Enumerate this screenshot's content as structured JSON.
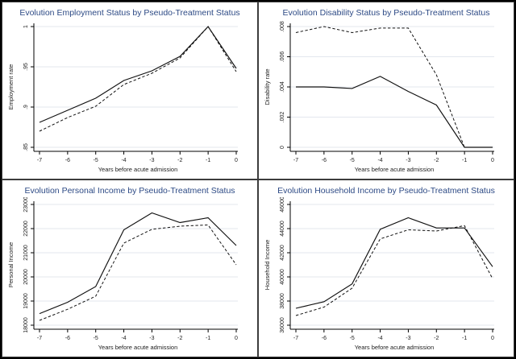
{
  "page": {
    "kind": "stata-graph-2x2-panel",
    "background": "#ffffff",
    "outer_border_color": "#000000",
    "panel_border_color": "#3c3c3c"
  },
  "colors": {
    "title_text": "#2d4a85",
    "line": "#111111",
    "grid": "#e3e7ee",
    "axis": "#000000",
    "tick_text": "#1c1c1c"
  },
  "chart_data": [
    {
      "type": "line",
      "title": "Evolution Employment Status by Pseudo-Treatment Status",
      "xlabel": "Years before acute admission",
      "ylabel": "Employment rate",
      "x": [
        -7,
        -6,
        -5,
        -4,
        -3,
        -2,
        -1,
        0
      ],
      "xtick_labels": [
        "-7",
        "-6",
        "-5",
        "-4",
        "-3",
        "-2",
        "-1",
        "0"
      ],
      "ylim": [
        0.85,
        1.0
      ],
      "yticks": [
        0.85,
        0.9,
        0.95,
        1.0
      ],
      "ytick_labels": [
        ".85",
        ".9",
        ".95",
        "1"
      ],
      "grid": true,
      "legend": "none",
      "series": [
        {
          "name": "solid",
          "line_style": "solid",
          "values": [
            0.881,
            0.896,
            0.911,
            0.933,
            0.945,
            0.963,
            1.0,
            0.948
          ]
        },
        {
          "name": "dashed",
          "line_style": "dashed",
          "values": [
            0.87,
            0.887,
            0.901,
            0.928,
            0.942,
            0.961,
            1.0,
            0.944
          ]
        }
      ]
    },
    {
      "type": "line",
      "title": "Evolution Disability Status by Pseudo-Treatment Status",
      "xlabel": "Years before acute admission",
      "ylabel": "Disability rate",
      "x": [
        -7,
        -6,
        -5,
        -4,
        -3,
        -2,
        -1,
        0
      ],
      "xtick_labels": [
        "-7",
        "-6",
        "-5",
        "-4",
        "-3",
        "-2",
        "-1",
        "0"
      ],
      "ylim": [
        0,
        0.008
      ],
      "yticks": [
        0,
        0.002,
        0.004,
        0.006,
        0.008
      ],
      "ytick_labels": [
        "0",
        ".002",
        ".004",
        ".006",
        ".008"
      ],
      "grid": true,
      "legend": "none",
      "series": [
        {
          "name": "solid",
          "line_style": "solid",
          "values": [
            0.004,
            0.004,
            0.0039,
            0.0047,
            0.0037,
            0.0028,
            0.0,
            0.0
          ]
        },
        {
          "name": "dashed",
          "line_style": "dashed",
          "values": [
            0.0076,
            0.008,
            0.0076,
            0.0079,
            0.0079,
            0.0048,
            0.0,
            0.0
          ]
        }
      ]
    },
    {
      "type": "line",
      "title": "Evolution Personal Income by Pseudo-Treatment Status",
      "xlabel": "Years before acute admission",
      "ylabel": "Personal Income",
      "x": [
        -7,
        -6,
        -5,
        -4,
        -3,
        -2,
        -1,
        0
      ],
      "xtick_labels": [
        "-7",
        "-6",
        "-5",
        "-4",
        "-3",
        "-2",
        "-1",
        "0"
      ],
      "ylim": [
        18000,
        23000
      ],
      "yticks": [
        18000,
        19000,
        20000,
        21000,
        22000,
        23000
      ],
      "ytick_labels": [
        "18000",
        "19000",
        "20000",
        "21000",
        "22000",
        "23000"
      ],
      "grid": true,
      "legend": "none",
      "series": [
        {
          "name": "solid",
          "line_style": "solid",
          "values": [
            18480,
            18950,
            19600,
            21950,
            22650,
            22250,
            22450,
            21300
          ]
        },
        {
          "name": "dashed",
          "line_style": "dashed",
          "values": [
            18200,
            18660,
            19200,
            21400,
            21970,
            22100,
            22150,
            20500
          ]
        }
      ]
    },
    {
      "type": "line",
      "title": "Evolution Household Income by Pseudo-Treatment Status",
      "xlabel": "Years before acute admission",
      "ylabel": "Household Income",
      "x": [
        -7,
        -6,
        -5,
        -4,
        -3,
        -2,
        -1,
        0
      ],
      "xtick_labels": [
        "-7",
        "-6",
        "-5",
        "-4",
        "-3",
        "-2",
        "-1",
        "0"
      ],
      "ylim": [
        36000,
        46000
      ],
      "yticks": [
        36000,
        38000,
        40000,
        42000,
        44000,
        46000
      ],
      "ytick_labels": [
        "36000",
        "38000",
        "40000",
        "42000",
        "44000",
        "46000"
      ],
      "grid": true,
      "legend": "none",
      "series": [
        {
          "name": "solid",
          "line_style": "solid",
          "values": [
            37400,
            37950,
            39420,
            43950,
            44900,
            44050,
            44050,
            40850
          ]
        },
        {
          "name": "dashed",
          "line_style": "dashed",
          "values": [
            36800,
            37500,
            39070,
            43150,
            43900,
            43800,
            44250,
            39850
          ]
        }
      ]
    }
  ]
}
